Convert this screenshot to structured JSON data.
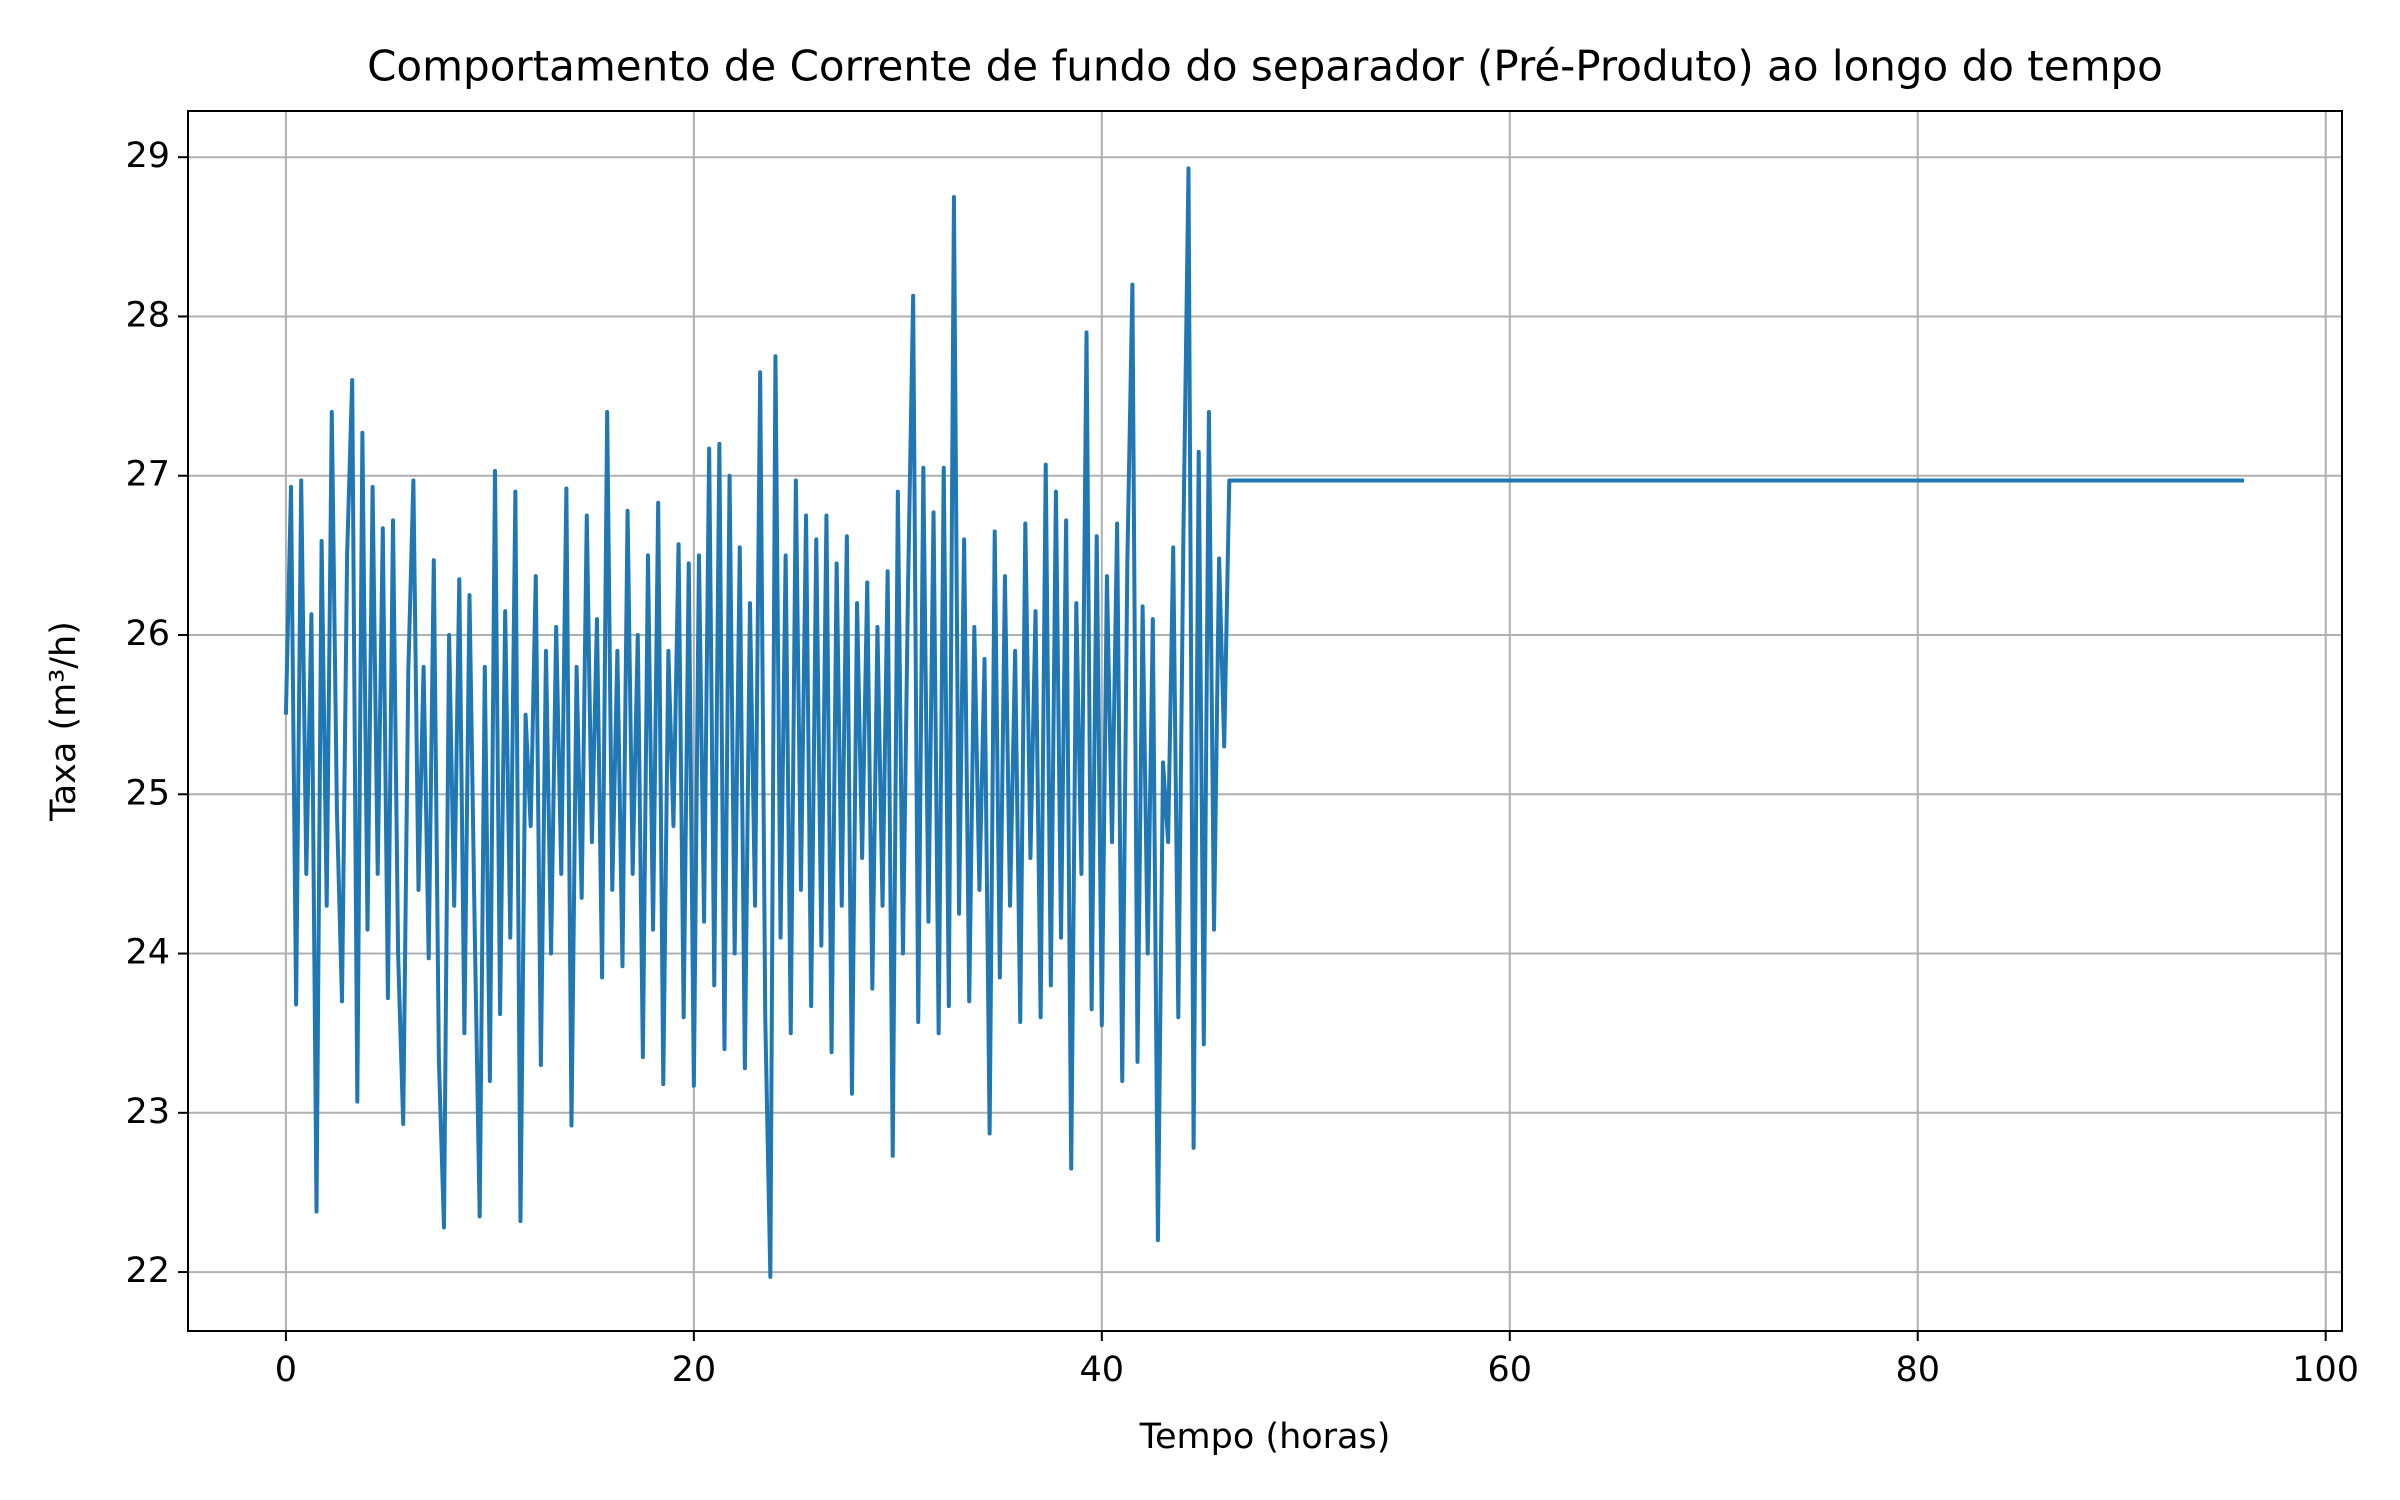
{
  "chart_data": {
    "type": "line",
    "title": "Comportamento de Corrente de fundo do separador (Pré-Produto) ao longo do tempo",
    "xlabel": "Tempo (horas)",
    "ylabel": "Taxa (m³/h)",
    "x": [
      0,
      0.25,
      0.5,
      0.75,
      1,
      1.25,
      1.5,
      1.75,
      2,
      2.25,
      2.5,
      2.75,
      3,
      3.25,
      3.5,
      3.75,
      4,
      4.25,
      4.5,
      4.75,
      5,
      5.25,
      5.5,
      5.75,
      6,
      6.25,
      6.5,
      6.75,
      7,
      7.25,
      7.5,
      7.75,
      8,
      8.25,
      8.5,
      8.75,
      9,
      9.25,
      9.5,
      9.75,
      10,
      10.25,
      10.5,
      10.75,
      11,
      11.25,
      11.5,
      11.75,
      12,
      12.25,
      12.5,
      12.75,
      13,
      13.25,
      13.5,
      13.75,
      14,
      14.25,
      14.5,
      14.75,
      15,
      15.25,
      15.5,
      15.75,
      16,
      16.25,
      16.5,
      16.75,
      17,
      17.25,
      17.5,
      17.75,
      18,
      18.25,
      18.5,
      18.75,
      19,
      19.25,
      19.5,
      19.75,
      20,
      20.25,
      20.5,
      20.75,
      21,
      21.25,
      21.5,
      21.75,
      22,
      22.25,
      22.5,
      22.75,
      23,
      23.25,
      23.5,
      23.75,
      24,
      24.25,
      24.5,
      24.75,
      25,
      25.25,
      25.5,
      25.75,
      26,
      26.25,
      26.5,
      26.75,
      27,
      27.25,
      27.5,
      27.75,
      28,
      28.25,
      28.5,
      28.75,
      29,
      29.25,
      29.5,
      29.75,
      30,
      30.25,
      30.5,
      30.75,
      31,
      31.25,
      31.5,
      31.75,
      32,
      32.25,
      32.5,
      32.75,
      33,
      33.25,
      33.5,
      33.75,
      34,
      34.25,
      34.5,
      34.75,
      35,
      35.25,
      35.5,
      35.75,
      36,
      36.25,
      36.5,
      36.75,
      37,
      37.25,
      37.5,
      37.75,
      38,
      38.25,
      38.5,
      38.75,
      39,
      39.25,
      39.5,
      39.75,
      40,
      40.25,
      40.5,
      40.75,
      41,
      41.25,
      41.5,
      41.75,
      42,
      42.25,
      42.5,
      42.75,
      43,
      43.25,
      43.5,
      43.75,
      44,
      44.25,
      44.5,
      44.75,
      45,
      45.25,
      45.5,
      45.75,
      46,
      46.25,
      96
    ],
    "series": [
      {
        "name": "Corrente de fundo",
        "color": "#1f77b4",
        "values": [
          25.5,
          26.93,
          23.68,
          26.97,
          24.5,
          26.13,
          22.38,
          26.59,
          24.3,
          27.4,
          24.9,
          23.7,
          26.5,
          27.6,
          23.07,
          27.27,
          24.15,
          26.93,
          24.5,
          26.67,
          23.72,
          26.72,
          24.0,
          22.93,
          25.77,
          26.97,
          24.4,
          25.8,
          23.97,
          26.47,
          23.33,
          22.28,
          26.0,
          24.3,
          26.35,
          23.5,
          26.25,
          24.2,
          22.35,
          25.8,
          23.2,
          27.03,
          23.62,
          26.15,
          24.1,
          26.9,
          22.32,
          25.5,
          24.8,
          26.37,
          23.3,
          25.9,
          24.0,
          26.05,
          24.5,
          26.92,
          22.92,
          25.8,
          24.35,
          26.75,
          24.7,
          26.1,
          23.85,
          27.4,
          24.4,
          25.9,
          23.92,
          26.78,
          24.5,
          26.0,
          23.35,
          26.5,
          24.15,
          26.83,
          23.18,
          25.9,
          24.8,
          26.57,
          23.6,
          26.45,
          23.17,
          26.5,
          24.2,
          27.17,
          23.8,
          27.2,
          23.4,
          27.0,
          24.0,
          26.55,
          23.28,
          26.2,
          24.3,
          27.65,
          23.6,
          21.97,
          27.75,
          24.1,
          26.5,
          23.5,
          26.97,
          24.4,
          26.75,
          23.67,
          26.6,
          24.05,
          26.75,
          23.38,
          26.45,
          24.3,
          26.62,
          23.12,
          26.2,
          24.6,
          26.33,
          23.78,
          26.05,
          24.3,
          26.4,
          22.73,
          26.9,
          24.0,
          26.3,
          28.13,
          23.57,
          27.05,
          24.2,
          26.77,
          23.5,
          27.05,
          23.67,
          28.75,
          24.25,
          26.6,
          23.7,
          26.05,
          24.4,
          25.85,
          22.87,
          26.65,
          23.85,
          26.37,
          24.3,
          25.9,
          23.57,
          26.7,
          24.6,
          26.15,
          23.6,
          27.07,
          23.8,
          26.9,
          24.1,
          26.72,
          22.65,
          26.2,
          24.5,
          27.9,
          23.65,
          26.62,
          23.55,
          26.37,
          24.7,
          26.7,
          23.2,
          26.45,
          28.2,
          23.32,
          26.18,
          24.0,
          26.1,
          22.2,
          25.2,
          24.7,
          26.55,
          23.6,
          26.63,
          28.93,
          22.78,
          27.15,
          23.43,
          27.4,
          24.15,
          26.48,
          25.3,
          26.97,
          26.97
        ]
      }
    ],
    "xlim": [
      -4.8,
      100.8
    ],
    "xticks": [
      0,
      20,
      40,
      60,
      80,
      100
    ],
    "ylim": [
      21.63,
      29.29
    ],
    "yticks": [
      22,
      23,
      24,
      25,
      26,
      27,
      28,
      29
    ],
    "grid": true
  }
}
